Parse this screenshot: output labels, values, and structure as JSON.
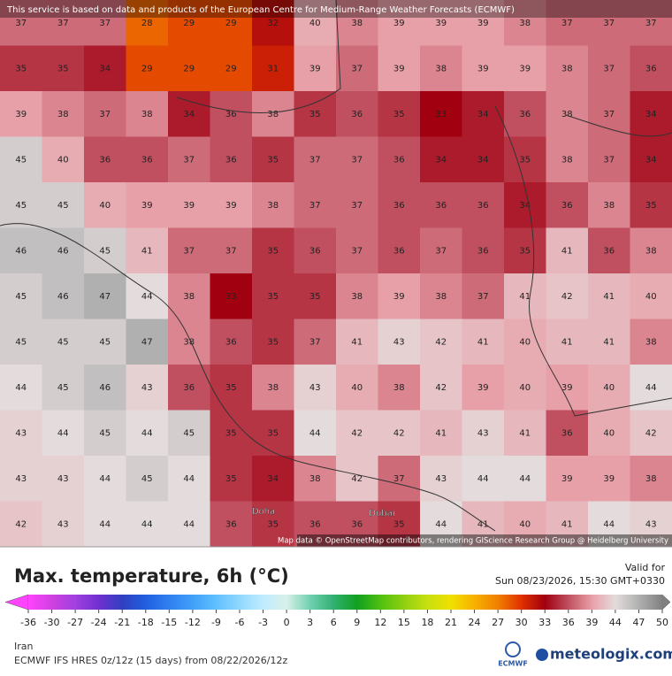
{
  "map": {
    "banner": "This service is based on data and products of the European Centre for Medium-Range Weather Forecasts (ECMWF)",
    "attribution": "Map data © OpenStreetMap contributors, rendering GIScience Research Group @ Heidelberg University",
    "grid": [
      [
        37,
        37,
        37,
        28,
        29,
        29,
        32,
        40,
        38,
        39,
        39,
        39,
        38,
        37,
        37,
        37
      ],
      [
        35,
        35,
        34,
        29,
        29,
        29,
        31,
        39,
        37,
        39,
        38,
        39,
        39,
        38,
        37,
        36
      ],
      [
        39,
        38,
        37,
        38,
        34,
        36,
        38,
        35,
        36,
        35,
        33,
        34,
        36,
        38,
        37,
        34
      ],
      [
        45,
        40,
        36,
        36,
        37,
        36,
        35,
        37,
        37,
        36,
        34,
        34,
        35,
        38,
        37,
        34
      ],
      [
        45,
        45,
        40,
        39,
        39,
        39,
        38,
        37,
        37,
        36,
        36,
        36,
        34,
        36,
        38,
        35
      ],
      [
        46,
        46,
        45,
        41,
        37,
        37,
        35,
        36,
        37,
        36,
        37,
        36,
        35,
        41,
        36,
        38
      ],
      [
        45,
        46,
        47,
        44,
        38,
        33,
        35,
        35,
        38,
        39,
        38,
        37,
        41,
        42,
        41,
        40
      ],
      [
        45,
        45,
        45,
        47,
        38,
        36,
        35,
        37,
        41,
        43,
        42,
        41,
        40,
        41,
        41,
        38
      ],
      [
        44,
        45,
        46,
        43,
        36,
        35,
        38,
        43,
        40,
        38,
        42,
        39,
        40,
        39,
        40,
        44
      ],
      [
        43,
        44,
        45,
        44,
        45,
        35,
        35,
        44,
        42,
        42,
        41,
        43,
        41,
        36,
        40,
        42
      ],
      [
        43,
        43,
        44,
        45,
        44,
        35,
        34,
        38,
        42,
        37,
        43,
        44,
        44,
        39,
        39,
        38
      ],
      [
        42,
        43,
        44,
        44,
        44,
        36,
        35,
        36,
        36,
        35,
        44,
        41,
        40,
        41,
        44,
        43
      ]
    ],
    "places": [
      "Doha",
      "Dubai"
    ]
  },
  "legend": {
    "title": "Max. temperature, 6h (°C)",
    "valid_label": "Valid for",
    "valid_time": "Sun 08/23/2026, 15:30 GMT+0330",
    "colorbar": {
      "ticks": [
        -36,
        -30,
        -27,
        -24,
        -21,
        -18,
        -15,
        -12,
        -9,
        -6,
        -3,
        0,
        3,
        6,
        9,
        12,
        15,
        18,
        21,
        24,
        27,
        30,
        33,
        36,
        39,
        44,
        47,
        50
      ],
      "colors": [
        "#ff44ff",
        "#d040e0",
        "#a040e0",
        "#7030d0",
        "#3040c0",
        "#2060e0",
        "#3080f0",
        "#40a0f8",
        "#60c0ff",
        "#90d8ff",
        "#c0ecff",
        "#d8f0e8",
        "#70d0b0",
        "#30b070",
        "#10a020",
        "#50c010",
        "#90d010",
        "#c8e010",
        "#f0e000",
        "#f8b000",
        "#f08000",
        "#e03000",
        "#a00010",
        "#c05060",
        "#e8a0a8",
        "#e4dcdc",
        "#b0b0b0",
        "#808080"
      ]
    },
    "region": "Iran",
    "model": "ECMWF IFS HRES 0z/12z (15 days) from 08/22/2026/12z"
  },
  "logos": [
    "ECMWF",
    "meteologix.com"
  ]
}
